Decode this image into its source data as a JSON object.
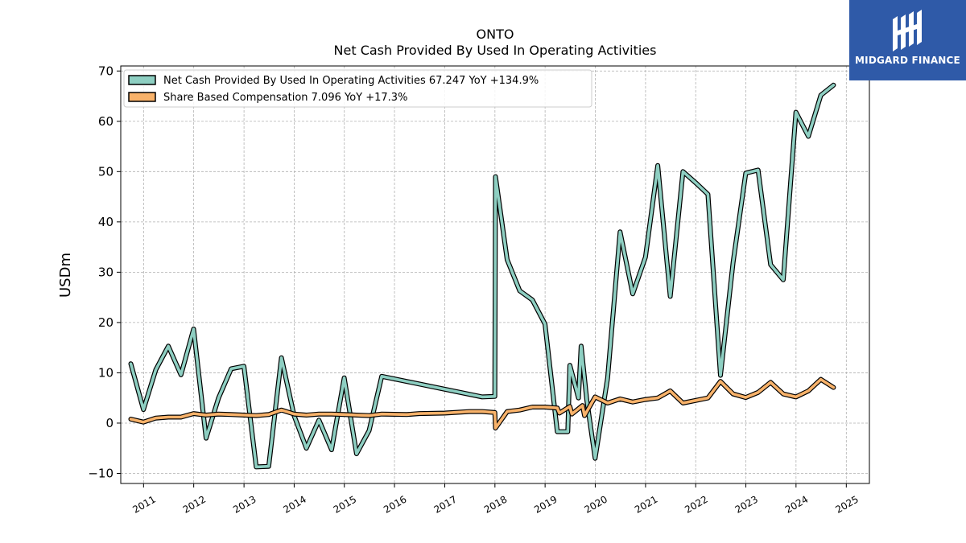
{
  "chart_data": {
    "type": "line",
    "title": "ONTO",
    "subtitle": "Net Cash Provided By Used In Operating Activities",
    "xlabel": "",
    "ylabel": "USDm",
    "ylim": [
      -12,
      71
    ],
    "yticks": [
      -10,
      0,
      10,
      20,
      30,
      40,
      50,
      60,
      70
    ],
    "xticks": [
      "2011",
      "2012",
      "2013",
      "2014",
      "2015",
      "2016",
      "2017",
      "2018",
      "2019",
      "2020",
      "2021",
      "2022",
      "2023",
      "2024",
      "2025"
    ],
    "xlim": [
      "2010-07-19",
      "2025-06-18"
    ],
    "grid": true,
    "legend_position": "top-left",
    "series": [
      {
        "name": "Net Cash Provided By Used In Operating Activities",
        "legend_label": "Net Cash Provided By Used In Operating Activities  67.247 YoY +134.9%",
        "color": "#8ecfc2",
        "points": [
          [
            "2010-09-30",
            11.8
          ],
          [
            "2010-12-31",
            2.7
          ],
          [
            "2011-03-31",
            10.6
          ],
          [
            "2011-06-30",
            15.3
          ],
          [
            "2011-09-30",
            9.6
          ],
          [
            "2011-12-31",
            18.7
          ],
          [
            "2012-03-31",
            -3.0
          ],
          [
            "2012-06-30",
            5.0
          ],
          [
            "2012-09-30",
            10.8
          ],
          [
            "2012-12-31",
            11.3
          ],
          [
            "2013-03-31",
            -8.7
          ],
          [
            "2013-06-30",
            -8.6
          ],
          [
            "2013-09-30",
            13.0
          ],
          [
            "2013-12-31",
            1.5
          ],
          [
            "2014-03-31",
            -5.0
          ],
          [
            "2014-06-30",
            0.6
          ],
          [
            "2014-09-30",
            -5.3
          ],
          [
            "2014-12-31",
            9.0
          ],
          [
            "2015-03-31",
            -6.1
          ],
          [
            "2015-06-30",
            -1.5
          ],
          [
            "2015-09-30",
            9.3
          ],
          [
            "2017-09-30",
            5.2
          ],
          [
            "2017-12-31",
            5.3
          ],
          [
            "2018-01-05",
            49.0
          ],
          [
            "2018-03-31",
            32.5
          ],
          [
            "2018-06-30",
            26.3
          ],
          [
            "2018-09-30",
            24.5
          ],
          [
            "2018-12-31",
            19.7
          ],
          [
            "2019-03-31",
            -1.7
          ],
          [
            "2019-06-15",
            -1.7
          ],
          [
            "2019-06-30",
            11.5
          ],
          [
            "2019-09-01",
            5.0
          ],
          [
            "2019-09-20",
            15.3
          ],
          [
            "2019-11-01",
            4.5
          ],
          [
            "2019-12-31",
            -7.0
          ],
          [
            "2020-03-31",
            9.0
          ],
          [
            "2020-06-30",
            38.0
          ],
          [
            "2020-09-30",
            25.7
          ],
          [
            "2020-12-31",
            33.0
          ],
          [
            "2021-03-31",
            51.2
          ],
          [
            "2021-06-30",
            25.2
          ],
          [
            "2021-09-30",
            50.0
          ],
          [
            "2021-12-31",
            47.8
          ],
          [
            "2022-03-31",
            45.5
          ],
          [
            "2022-06-30",
            9.5
          ],
          [
            "2022-09-30",
            32.0
          ],
          [
            "2022-12-31",
            49.7
          ],
          [
            "2023-03-31",
            50.3
          ],
          [
            "2023-06-30",
            31.5
          ],
          [
            "2023-09-30",
            28.5
          ],
          [
            "2023-12-31",
            61.8
          ],
          [
            "2024-03-31",
            57.0
          ],
          [
            "2024-06-30",
            65.2
          ],
          [
            "2024-09-30",
            67.2
          ]
        ]
      },
      {
        "name": "Share Based Compensation",
        "legend_label": "Share Based Compensation  7.096 YoY +17.3%",
        "color": "#f8b26a",
        "points": [
          [
            "2010-09-30",
            0.8
          ],
          [
            "2010-12-31",
            0.2
          ],
          [
            "2011-03-31",
            1.0
          ],
          [
            "2011-06-30",
            1.2
          ],
          [
            "2011-09-30",
            1.2
          ],
          [
            "2011-12-31",
            1.9
          ],
          [
            "2012-03-31",
            1.6
          ],
          [
            "2012-06-30",
            1.8
          ],
          [
            "2012-09-30",
            1.7
          ],
          [
            "2012-12-31",
            1.6
          ],
          [
            "2013-03-31",
            1.5
          ],
          [
            "2013-06-30",
            1.7
          ],
          [
            "2013-09-30",
            2.6
          ],
          [
            "2013-12-31",
            1.8
          ],
          [
            "2014-03-31",
            1.6
          ],
          [
            "2014-06-30",
            1.8
          ],
          [
            "2014-09-30",
            1.8
          ],
          [
            "2014-12-31",
            1.7
          ],
          [
            "2015-03-31",
            1.6
          ],
          [
            "2015-06-30",
            1.5
          ],
          [
            "2015-09-30",
            1.8
          ],
          [
            "2016-03-31",
            1.7
          ],
          [
            "2016-06-30",
            1.9
          ],
          [
            "2016-12-31",
            2.0
          ],
          [
            "2017-06-30",
            2.3
          ],
          [
            "2017-09-30",
            2.3
          ],
          [
            "2017-12-31",
            2.1
          ],
          [
            "2018-01-05",
            -1.0
          ],
          [
            "2018-03-31",
            2.3
          ],
          [
            "2018-06-30",
            2.6
          ],
          [
            "2018-09-30",
            3.2
          ],
          [
            "2018-12-31",
            3.2
          ],
          [
            "2019-03-31",
            3.0
          ],
          [
            "2019-04-15",
            2.0
          ],
          [
            "2019-06-30",
            3.3
          ],
          [
            "2019-07-15",
            1.8
          ],
          [
            "2019-09-30",
            3.5
          ],
          [
            "2019-10-15",
            1.5
          ],
          [
            "2019-12-31",
            5.2
          ],
          [
            "2020-03-31",
            4.0
          ],
          [
            "2020-06-30",
            4.8
          ],
          [
            "2020-09-30",
            4.2
          ],
          [
            "2020-12-31",
            4.7
          ],
          [
            "2021-03-31",
            5.0
          ],
          [
            "2021-06-30",
            6.4
          ],
          [
            "2021-09-30",
            4.0
          ],
          [
            "2021-12-31",
            4.5
          ],
          [
            "2022-03-31",
            5.0
          ],
          [
            "2022-06-30",
            8.3
          ],
          [
            "2022-09-30",
            5.8
          ],
          [
            "2022-12-31",
            5.1
          ],
          [
            "2023-03-31",
            6.1
          ],
          [
            "2023-06-30",
            8.1
          ],
          [
            "2023-09-30",
            5.8
          ],
          [
            "2023-12-31",
            5.2
          ],
          [
            "2024-03-31",
            6.4
          ],
          [
            "2024-06-30",
            8.7
          ],
          [
            "2024-09-30",
            7.1
          ]
        ]
      }
    ]
  },
  "brand": {
    "name": "MIDGARD FINANCE",
    "color": "#2f5aa8"
  }
}
